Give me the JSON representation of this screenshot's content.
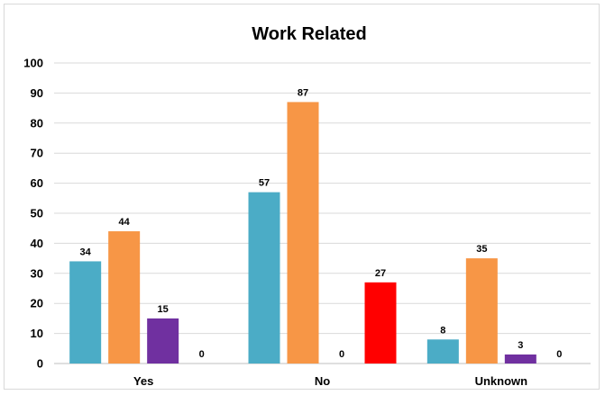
{
  "chart_data": {
    "type": "bar",
    "title": "Work Related",
    "xlabel": "",
    "ylabel": "",
    "ylim": [
      0,
      100
    ],
    "yticks": [
      0,
      10,
      20,
      30,
      40,
      50,
      60,
      70,
      80,
      90,
      100
    ],
    "grid": true,
    "legend": "none",
    "categories": [
      "Yes",
      "No",
      "Unknown"
    ],
    "series": [
      {
        "color": "#4bacc6",
        "values": [
          34,
          57,
          8
        ]
      },
      {
        "color": "#f79646",
        "values": [
          44,
          87,
          35
        ]
      },
      {
        "color": "#7030a0",
        "values": [
          15,
          0,
          3
        ]
      },
      {
        "color": "#ff0000",
        "values": [
          0,
          27,
          0
        ]
      }
    ]
  }
}
